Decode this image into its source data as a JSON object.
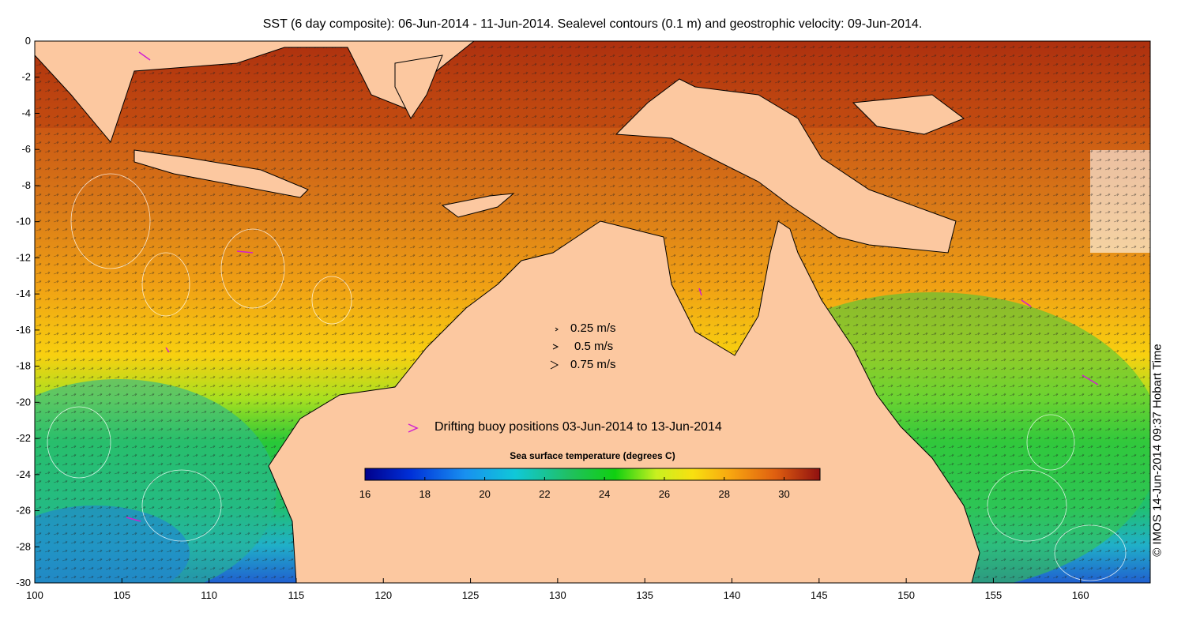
{
  "title": "SST (6 day composite): 06-Jun-2014 - 11-Jun-2014. Sealevel contours (0.1 m) and geostrophic velocity: 09-Jun-2014.",
  "credit": "© IMOS 14-Jun-2014 09:37 Hobart Time",
  "axes": {
    "x_ticks": [
      "100",
      "105",
      "110",
      "115",
      "120",
      "125",
      "130",
      "135",
      "140",
      "145",
      "150",
      "155",
      "160"
    ],
    "y_ticks": [
      "0",
      "-2",
      "-4",
      "-6",
      "-8",
      "-10",
      "-12",
      "-14",
      "-16",
      "-18",
      "-20",
      "-22",
      "-24",
      "-26",
      "-28",
      "-30"
    ],
    "lon_range": [
      100,
      164
    ],
    "lat_range": [
      -30,
      0
    ]
  },
  "velocity_legend": [
    {
      "label": "0.25 m/s"
    },
    {
      "label": "0.5 m/s"
    },
    {
      "label": "0.75 m/s"
    }
  ],
  "buoy_legend": {
    "label": "Drifting buoy positions 03-Jun-2014 to 13-Jun-2014",
    "color": "#d020d0"
  },
  "colorbar": {
    "title": "Sea surface temperature (degrees C)",
    "ticks": [
      "16",
      "18",
      "20",
      "22",
      "24",
      "26",
      "28",
      "30"
    ],
    "range": [
      16,
      31.2
    ]
  },
  "colors": {
    "land": "#fcc8a0",
    "warm": "#d86a10",
    "hot": "#b02010",
    "mid": "#f2a010",
    "cool": "#20c040",
    "cold": "#20a0d0"
  }
}
